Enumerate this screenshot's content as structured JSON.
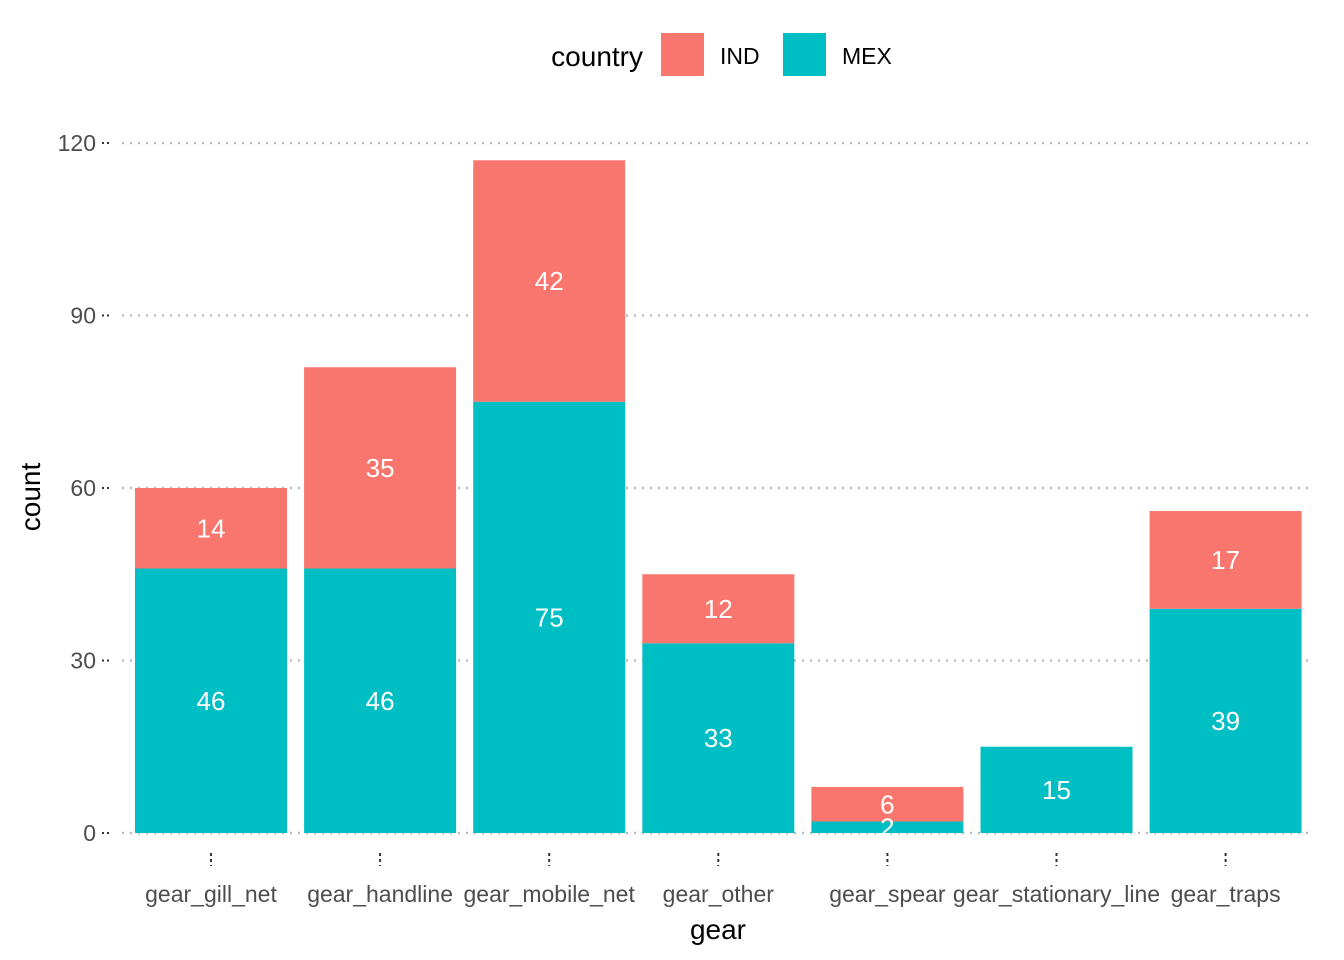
{
  "chart_data": {
    "type": "bar",
    "stacked": true,
    "categories": [
      "gear_gill_net",
      "gear_handline",
      "gear_mobile_net",
      "gear_other",
      "gear_spear",
      "gear_stationary_line",
      "gear_traps"
    ],
    "series": [
      {
        "name": "MEX",
        "color": "#00BFC4",
        "values": [
          46,
          46,
          75,
          33,
          2,
          15,
          39
        ]
      },
      {
        "name": "IND",
        "color": "#F8766D",
        "values": [
          14,
          35,
          42,
          12,
          6,
          0,
          17
        ]
      }
    ],
    "legend_order": [
      "IND",
      "MEX"
    ],
    "legend_title": "country",
    "legend_position": "top",
    "xlabel": "gear",
    "ylabel": "count",
    "ylim": [
      0,
      120
    ],
    "yticks": [
      0,
      30,
      60,
      90,
      120
    ],
    "grid": "horizontal dotted major"
  }
}
